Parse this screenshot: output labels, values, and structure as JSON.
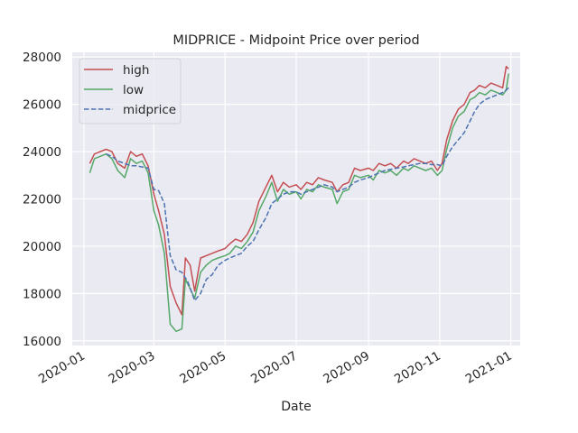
{
  "chart_data": {
    "type": "line",
    "title": "MIDPRICE - Midpoint Price over period",
    "xlabel": "Date",
    "ylabel": "",
    "x_ticks": [
      "2020-01",
      "2020-03",
      "2020-05",
      "2020-07",
      "2020-09",
      "2020-11",
      "2021-01"
    ],
    "y_ticks": [
      "16000",
      "18000",
      "20000",
      "22000",
      "24000",
      "26000",
      "28000"
    ],
    "ylim": [
      15800,
      28200
    ],
    "xlim": [
      "2019-12-22",
      "2021-01-09"
    ],
    "grid": true,
    "legend_position": "top-left",
    "series": [
      {
        "name": "high",
        "color": "#c44e52",
        "style": "solid",
        "points": [
          [
            "2020-01-06",
            23500
          ],
          [
            "2020-01-10",
            23900
          ],
          [
            "2020-01-15",
            24000
          ],
          [
            "2020-01-20",
            24100
          ],
          [
            "2020-01-25",
            24000
          ],
          [
            "2020-01-30",
            23500
          ],
          [
            "2020-02-05",
            23300
          ],
          [
            "2020-02-10",
            24000
          ],
          [
            "2020-02-15",
            23800
          ],
          [
            "2020-02-20",
            23900
          ],
          [
            "2020-02-25",
            23400
          ],
          [
            "2020-03-01",
            22200
          ],
          [
            "2020-03-05",
            21500
          ],
          [
            "2020-03-10",
            20500
          ],
          [
            "2020-03-15",
            18300
          ],
          [
            "2020-03-20",
            17600
          ],
          [
            "2020-03-25",
            17100
          ],
          [
            "2020-03-28",
            19500
          ],
          [
            "2020-04-01",
            19200
          ],
          [
            "2020-04-05",
            18100
          ],
          [
            "2020-04-10",
            19500
          ],
          [
            "2020-04-15",
            19600
          ],
          [
            "2020-04-20",
            19700
          ],
          [
            "2020-04-25",
            19800
          ],
          [
            "2020-05-01",
            19900
          ],
          [
            "2020-05-05",
            20100
          ],
          [
            "2020-05-10",
            20300
          ],
          [
            "2020-05-15",
            20200
          ],
          [
            "2020-05-20",
            20500
          ],
          [
            "2020-05-25",
            21000
          ],
          [
            "2020-05-30",
            21900
          ],
          [
            "2020-06-05",
            22500
          ],
          [
            "2020-06-10",
            23000
          ],
          [
            "2020-06-15",
            22300
          ],
          [
            "2020-06-20",
            22700
          ],
          [
            "2020-06-25",
            22500
          ],
          [
            "2020-07-01",
            22600
          ],
          [
            "2020-07-05",
            22400
          ],
          [
            "2020-07-10",
            22700
          ],
          [
            "2020-07-15",
            22600
          ],
          [
            "2020-07-20",
            22900
          ],
          [
            "2020-07-25",
            22800
          ],
          [
            "2020-08-01",
            22700
          ],
          [
            "2020-08-05",
            22300
          ],
          [
            "2020-08-10",
            22600
          ],
          [
            "2020-08-15",
            22700
          ],
          [
            "2020-08-20",
            23300
          ],
          [
            "2020-08-25",
            23200
          ],
          [
            "2020-09-01",
            23300
          ],
          [
            "2020-09-05",
            23200
          ],
          [
            "2020-09-10",
            23500
          ],
          [
            "2020-09-15",
            23400
          ],
          [
            "2020-09-20",
            23500
          ],
          [
            "2020-09-25",
            23300
          ],
          [
            "2020-10-01",
            23600
          ],
          [
            "2020-10-05",
            23500
          ],
          [
            "2020-10-10",
            23700
          ],
          [
            "2020-10-15",
            23600
          ],
          [
            "2020-10-20",
            23500
          ],
          [
            "2020-10-25",
            23600
          ],
          [
            "2020-10-30",
            23200
          ],
          [
            "2020-11-03",
            23500
          ],
          [
            "2020-11-07",
            24500
          ],
          [
            "2020-11-12",
            25300
          ],
          [
            "2020-11-17",
            25800
          ],
          [
            "2020-11-22",
            26000
          ],
          [
            "2020-11-27",
            26500
          ],
          [
            "2020-12-01",
            26600
          ],
          [
            "2020-12-05",
            26800
          ],
          [
            "2020-12-10",
            26700
          ],
          [
            "2020-12-15",
            26900
          ],
          [
            "2020-12-20",
            26800
          ],
          [
            "2020-12-25",
            26700
          ],
          [
            "2020-12-28",
            27600
          ],
          [
            "2020-12-30",
            27500
          ]
        ]
      },
      {
        "name": "low",
        "color": "#55a868",
        "style": "solid",
        "points": [
          [
            "2020-01-06",
            23100
          ],
          [
            "2020-01-10",
            23700
          ],
          [
            "2020-01-15",
            23800
          ],
          [
            "2020-01-20",
            23900
          ],
          [
            "2020-01-25",
            23700
          ],
          [
            "2020-01-30",
            23200
          ],
          [
            "2020-02-05",
            22900
          ],
          [
            "2020-02-10",
            23700
          ],
          [
            "2020-02-15",
            23500
          ],
          [
            "2020-02-20",
            23600
          ],
          [
            "2020-02-25",
            23100
          ],
          [
            "2020-03-01",
            21500
          ],
          [
            "2020-03-05",
            20900
          ],
          [
            "2020-03-10",
            19700
          ],
          [
            "2020-03-15",
            16700
          ],
          [
            "2020-03-20",
            16400
          ],
          [
            "2020-03-25",
            16500
          ],
          [
            "2020-03-28",
            18600
          ],
          [
            "2020-04-01",
            18200
          ],
          [
            "2020-04-05",
            17800
          ],
          [
            "2020-04-10",
            18900
          ],
          [
            "2020-04-15",
            19200
          ],
          [
            "2020-04-20",
            19400
          ],
          [
            "2020-04-25",
            19500
          ],
          [
            "2020-05-01",
            19600
          ],
          [
            "2020-05-05",
            19700
          ],
          [
            "2020-05-10",
            20000
          ],
          [
            "2020-05-15",
            19900
          ],
          [
            "2020-05-20",
            20200
          ],
          [
            "2020-05-25",
            20600
          ],
          [
            "2020-05-30",
            21500
          ],
          [
            "2020-06-05",
            22100
          ],
          [
            "2020-06-10",
            22700
          ],
          [
            "2020-06-15",
            21900
          ],
          [
            "2020-06-20",
            22400
          ],
          [
            "2020-06-25",
            22200
          ],
          [
            "2020-07-01",
            22300
          ],
          [
            "2020-07-05",
            22000
          ],
          [
            "2020-07-10",
            22400
          ],
          [
            "2020-07-15",
            22300
          ],
          [
            "2020-07-20",
            22600
          ],
          [
            "2020-07-25",
            22500
          ],
          [
            "2020-08-01",
            22400
          ],
          [
            "2020-08-05",
            21800
          ],
          [
            "2020-08-10",
            22300
          ],
          [
            "2020-08-15",
            22400
          ],
          [
            "2020-08-20",
            23000
          ],
          [
            "2020-08-25",
            22900
          ],
          [
            "2020-09-01",
            23000
          ],
          [
            "2020-09-05",
            22800
          ],
          [
            "2020-09-10",
            23200
          ],
          [
            "2020-09-15",
            23100
          ],
          [
            "2020-09-20",
            23200
          ],
          [
            "2020-09-25",
            23000
          ],
          [
            "2020-10-01",
            23300
          ],
          [
            "2020-10-05",
            23200
          ],
          [
            "2020-10-10",
            23400
          ],
          [
            "2020-10-15",
            23300
          ],
          [
            "2020-10-20",
            23200
          ],
          [
            "2020-10-25",
            23300
          ],
          [
            "2020-10-30",
            23000
          ],
          [
            "2020-11-03",
            23200
          ],
          [
            "2020-11-07",
            24100
          ],
          [
            "2020-11-12",
            25000
          ],
          [
            "2020-11-17",
            25500
          ],
          [
            "2020-11-22",
            25700
          ],
          [
            "2020-11-27",
            26200
          ],
          [
            "2020-12-01",
            26300
          ],
          [
            "2020-12-05",
            26500
          ],
          [
            "2020-12-10",
            26400
          ],
          [
            "2020-12-15",
            26600
          ],
          [
            "2020-12-20",
            26500
          ],
          [
            "2020-12-25",
            26400
          ],
          [
            "2020-12-28",
            26600
          ],
          [
            "2020-12-30",
            27300
          ]
        ]
      },
      {
        "name": "midprice",
        "color": "#4c72b0",
        "style": "dashed",
        "points": [
          [
            "2020-01-20",
            23900
          ],
          [
            "2020-01-25",
            23800
          ],
          [
            "2020-01-30",
            23600
          ],
          [
            "2020-02-05",
            23500
          ],
          [
            "2020-02-10",
            23400
          ],
          [
            "2020-02-15",
            23400
          ],
          [
            "2020-02-20",
            23350
          ],
          [
            "2020-02-25",
            23300
          ],
          [
            "2020-03-01",
            22400
          ],
          [
            "2020-03-05",
            22350
          ],
          [
            "2020-03-10",
            21800
          ],
          [
            "2020-03-15",
            19600
          ],
          [
            "2020-03-20",
            19000
          ],
          [
            "2020-03-25",
            18900
          ],
          [
            "2020-03-30",
            18500
          ],
          [
            "2020-04-05",
            17700
          ],
          [
            "2020-04-10",
            18000
          ],
          [
            "2020-04-15",
            18600
          ],
          [
            "2020-04-20",
            18800
          ],
          [
            "2020-04-25",
            19200
          ],
          [
            "2020-05-01",
            19400
          ],
          [
            "2020-05-05",
            19500
          ],
          [
            "2020-05-10",
            19600
          ],
          [
            "2020-05-15",
            19700
          ],
          [
            "2020-05-20",
            20000
          ],
          [
            "2020-05-25",
            20200
          ],
          [
            "2020-05-30",
            20700
          ],
          [
            "2020-06-05",
            21200
          ],
          [
            "2020-06-10",
            21800
          ],
          [
            "2020-06-15",
            22000
          ],
          [
            "2020-06-20",
            22200
          ],
          [
            "2020-06-25",
            22300
          ],
          [
            "2020-07-01",
            22300
          ],
          [
            "2020-07-05",
            22200
          ],
          [
            "2020-07-10",
            22300
          ],
          [
            "2020-07-15",
            22400
          ],
          [
            "2020-07-20",
            22500
          ],
          [
            "2020-07-25",
            22600
          ],
          [
            "2020-08-01",
            22500
          ],
          [
            "2020-08-05",
            22300
          ],
          [
            "2020-08-10",
            22400
          ],
          [
            "2020-08-15",
            22500
          ],
          [
            "2020-08-20",
            22700
          ],
          [
            "2020-08-25",
            22800
          ],
          [
            "2020-09-01",
            22900
          ],
          [
            "2020-09-05",
            23000
          ],
          [
            "2020-09-10",
            23100
          ],
          [
            "2020-09-15",
            23200
          ],
          [
            "2020-09-20",
            23250
          ],
          [
            "2020-09-25",
            23300
          ],
          [
            "2020-10-01",
            23350
          ],
          [
            "2020-10-05",
            23400
          ],
          [
            "2020-10-10",
            23450
          ],
          [
            "2020-10-15",
            23500
          ],
          [
            "2020-10-20",
            23500
          ],
          [
            "2020-10-25",
            23450
          ],
          [
            "2020-10-30",
            23450
          ],
          [
            "2020-11-03",
            23400
          ],
          [
            "2020-11-07",
            23800
          ],
          [
            "2020-11-12",
            24200
          ],
          [
            "2020-11-17",
            24500
          ],
          [
            "2020-11-22",
            24800
          ],
          [
            "2020-11-27",
            25300
          ],
          [
            "2020-12-01",
            25700
          ],
          [
            "2020-12-05",
            26000
          ],
          [
            "2020-12-10",
            26200
          ],
          [
            "2020-12-15",
            26300
          ],
          [
            "2020-12-20",
            26400
          ],
          [
            "2020-12-25",
            26500
          ],
          [
            "2020-12-28",
            26600
          ],
          [
            "2020-12-30",
            26700
          ]
        ]
      }
    ]
  }
}
